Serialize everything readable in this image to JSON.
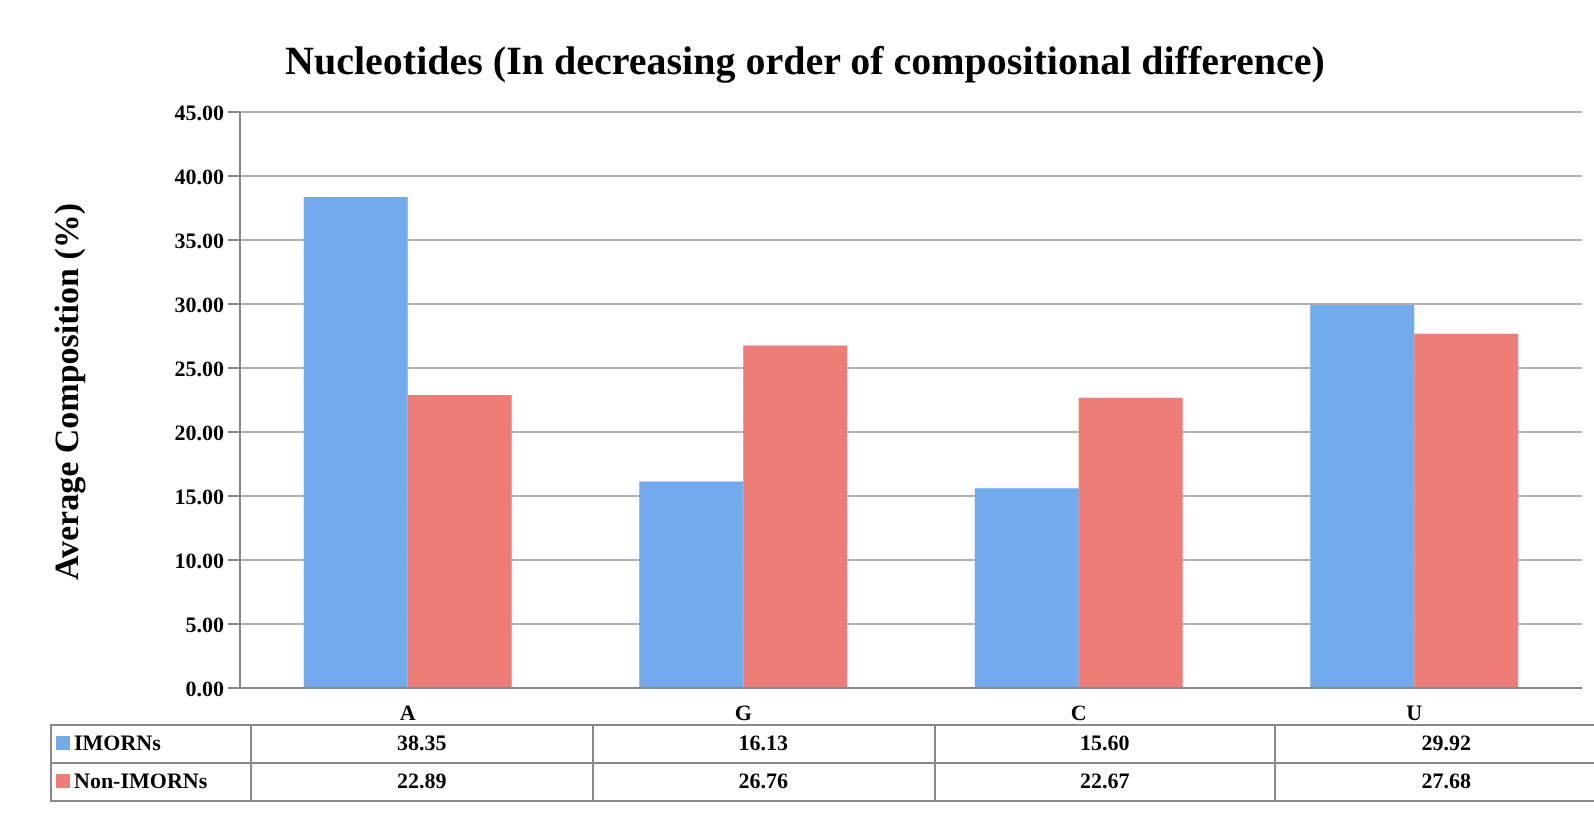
{
  "chart_data": {
    "type": "bar",
    "title": "Nucleotides (In decreasing order of compositional difference)",
    "ylabel": "Average Composition (%)",
    "categories": [
      "A",
      "G",
      "C",
      "U"
    ],
    "series": [
      {
        "name": "IMORNs",
        "color": "#72aaee",
        "values": [
          38.35,
          16.13,
          15.6,
          29.92
        ],
        "value_labels": [
          "38.35",
          "16.13",
          "15.60",
          "29.92"
        ]
      },
      {
        "name": "Non-IMORNs",
        "color": "#ee7d78",
        "values": [
          22.89,
          26.76,
          22.67,
          27.68
        ],
        "value_labels": [
          "22.89",
          "26.76",
          "22.67",
          "27.68"
        ]
      }
    ],
    "ylim": [
      0,
      45
    ],
    "yticks": [
      {
        "value": 0,
        "label": "0.00"
      },
      {
        "value": 5,
        "label": "5.00"
      },
      {
        "value": 10,
        "label": "10.00"
      },
      {
        "value": 15,
        "label": "15.00"
      },
      {
        "value": 20,
        "label": "20.00"
      },
      {
        "value": 25,
        "label": "25.00"
      },
      {
        "value": 30,
        "label": "30.00"
      },
      {
        "value": 35,
        "label": "35.00"
      },
      {
        "value": 40,
        "label": "40.00"
      },
      {
        "value": 45,
        "label": "45.00"
      }
    ],
    "grid": "y",
    "legend": "bottom"
  }
}
